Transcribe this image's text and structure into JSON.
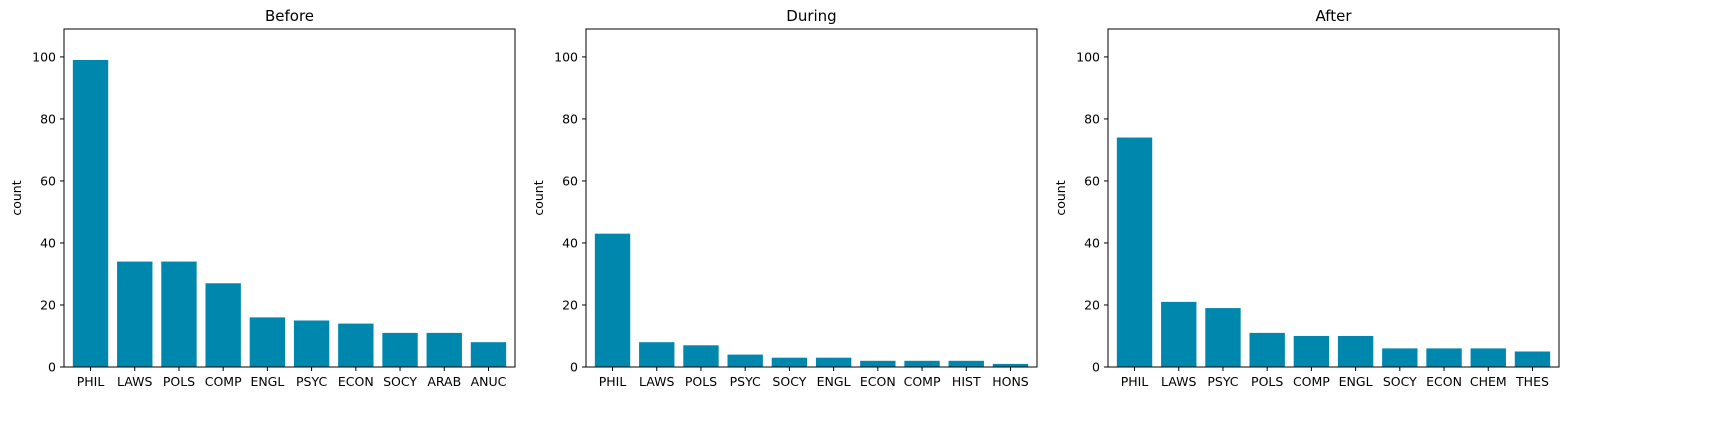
{
  "chart_data": [
    {
      "type": "bar",
      "title": "Before",
      "xlabel": "",
      "ylabel": "count",
      "ylim": [
        0,
        109
      ],
      "yticks": [
        0,
        20,
        40,
        60,
        80,
        100
      ],
      "categories": [
        "PHIL",
        "LAWS",
        "POLS",
        "COMP",
        "ENGL",
        "PSYC",
        "ECON",
        "SOCY",
        "ARAB",
        "ANUC"
      ],
      "values": [
        99,
        34,
        34,
        27,
        16,
        15,
        14,
        11,
        11,
        8
      ],
      "color": "#0087AE",
      "grid": false,
      "legend": "none"
    },
    {
      "type": "bar",
      "title": "During",
      "xlabel": "",
      "ylabel": "count",
      "ylim": [
        0,
        109
      ],
      "yticks": [
        0,
        20,
        40,
        60,
        80,
        100
      ],
      "categories": [
        "PHIL",
        "LAWS",
        "POLS",
        "PSYC",
        "SOCY",
        "ENGL",
        "ECON",
        "COMP",
        "HIST",
        "HONS"
      ],
      "values": [
        43,
        8,
        7,
        4,
        3,
        3,
        2,
        2,
        2,
        1
      ],
      "color": "#0087AE",
      "grid": false,
      "legend": "none"
    },
    {
      "type": "bar",
      "title": "After",
      "xlabel": "",
      "ylabel": "count",
      "ylim": [
        0,
        109
      ],
      "yticks": [
        0,
        20,
        40,
        60,
        80,
        100
      ],
      "categories": [
        "PHIL",
        "LAWS",
        "PSYC",
        "POLS",
        "COMP",
        "ENGL",
        "SOCY",
        "ECON",
        "CHEM",
        "THES"
      ],
      "values": [
        74,
        21,
        19,
        11,
        10,
        10,
        6,
        6,
        6,
        5
      ],
      "color": "#0087AE",
      "grid": false,
      "legend": "none"
    }
  ]
}
